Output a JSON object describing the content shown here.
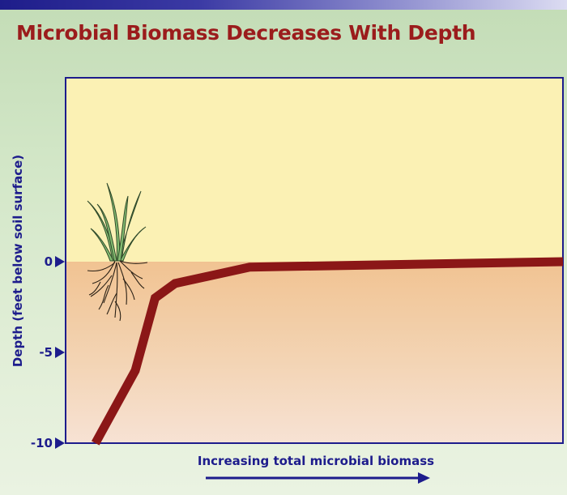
{
  "title": "Microbial Biomass Decreases With Depth",
  "colors": {
    "title": "#9b1c1c",
    "axis": "#1d1c8c",
    "line": "#8b1717",
    "sky": "#fbf1b4",
    "soil": "#f0c595",
    "plant": "#7ab66a"
  },
  "chart_data": {
    "type": "line",
    "title": "Microbial Biomass Decreases With Depth",
    "xlabel": "Increasing total microbial biomass",
    "ylabel": "Depth (feet below soil surface)",
    "x_axis_ticks": false,
    "x_axis_arrow": "right",
    "y_ticks": [
      0,
      -5,
      -10
    ],
    "y_tick_labels": [
      "0",
      "-5",
      "-10"
    ],
    "ylim": [
      -10,
      10
    ],
    "xlim": [
      0,
      100
    ],
    "grid": false,
    "series": [
      {
        "x": [
          6,
          14,
          18,
          22,
          37,
          100
        ],
        "y": [
          -10,
          -6,
          -2,
          -1.2,
          -0.3,
          0
        ]
      }
    ]
  },
  "decorations": {
    "plant_icon": "grass-with-roots-icon",
    "arrow_icon": "arrow-right-icon"
  }
}
